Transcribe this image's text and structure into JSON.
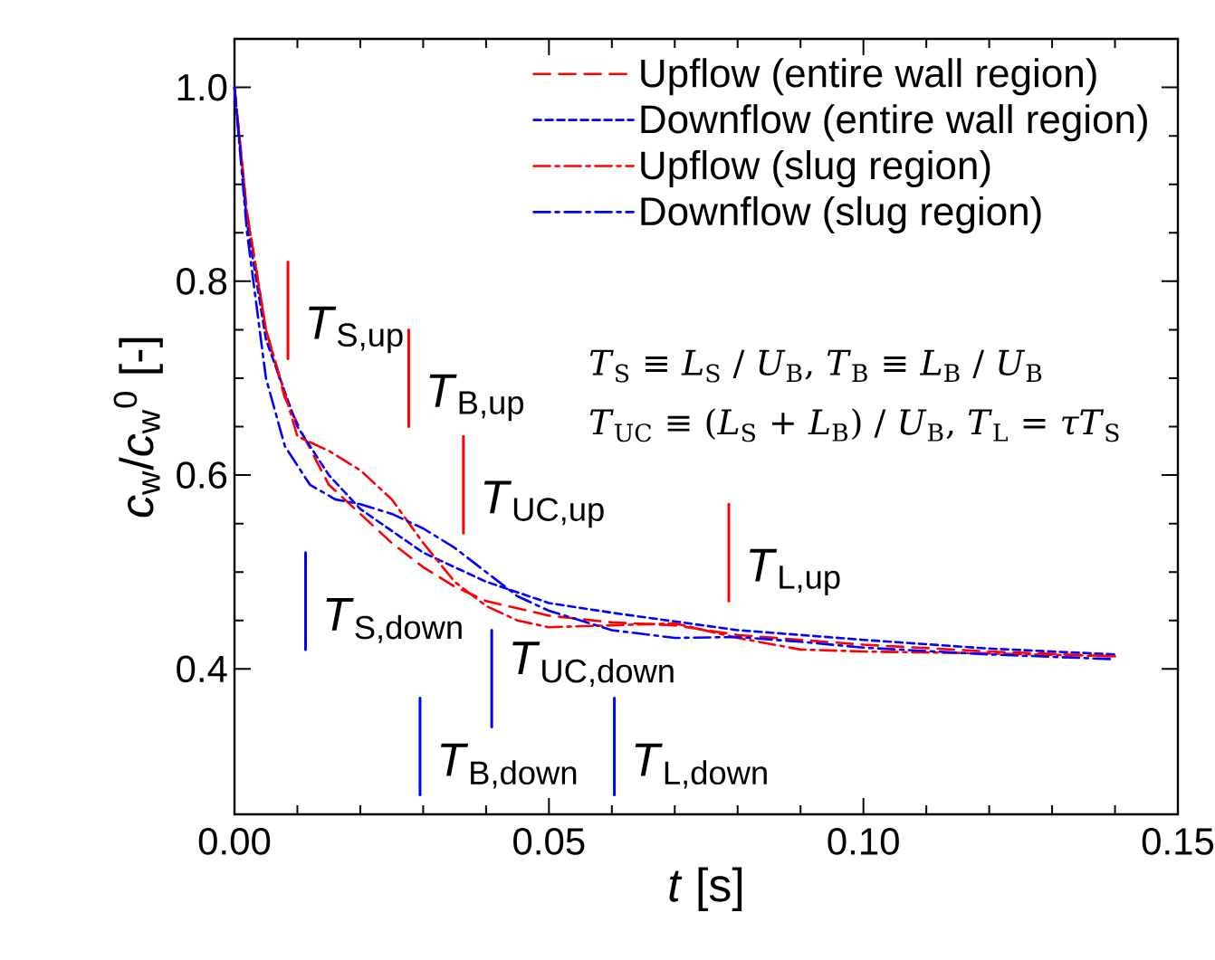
{
  "chart_data": {
    "type": "line",
    "xlabel": "*t* [s]",
    "ylabel": "*c*$_{w}$/*c*$_{w}$$^{0}$ [-]",
    "xlim": [
      0,
      0.15
    ],
    "ylim": [
      0.25,
      1.05
    ],
    "xticks": [
      {
        "value": 0,
        "label": "0.00"
      },
      {
        "value": 0.05,
        "label": "0.05"
      },
      {
        "value": 0.1,
        "label": "0.10"
      },
      {
        "value": 0.15,
        "label": "0.15"
      }
    ],
    "yticks": [
      0.4,
      0.6,
      0.8,
      {
        "value": 1.0,
        "label": "1.0"
      }
    ],
    "legend": "top right",
    "grid": false,
    "marker": "none",
    "series": [
      {
        "name": "Upflow (entire wall region)",
        "color": "#ff0000",
        "line_style": "dashed",
        "x": [
          0,
          0.002,
          0.005,
          0.008,
          0.011,
          0.015,
          0.02,
          0.025,
          0.03,
          0.035,
          0.04,
          0.05,
          0.06,
          0.07,
          0.08,
          0.1,
          0.12,
          0.14
        ],
        "values": [
          1.0,
          0.87,
          0.75,
          0.68,
          0.64,
          0.59,
          0.56,
          0.53,
          0.505,
          0.485,
          0.47,
          0.455,
          0.448,
          0.445,
          0.435,
          0.425,
          0.418,
          0.413
        ]
      },
      {
        "name": "Downflow (entire wall region)",
        "color": "#0000ff",
        "line_style": "dotted",
        "x": [
          0,
          0.002,
          0.005,
          0.01,
          0.015,
          0.02,
          0.03,
          0.04,
          0.05,
          0.06,
          0.08,
          0.1,
          0.12,
          0.14
        ],
        "values": [
          1.0,
          0.86,
          0.74,
          0.65,
          0.6,
          0.565,
          0.52,
          0.49,
          0.468,
          0.458,
          0.44,
          0.43,
          0.421,
          0.415
        ]
      },
      {
        "name": "Upflow (slug region)",
        "color": "#ff0000",
        "line_style": "dashdot",
        "x": [
          0,
          0.002,
          0.005,
          0.01,
          0.015,
          0.02,
          0.025,
          0.03,
          0.035,
          0.04,
          0.045,
          0.05,
          0.06,
          0.07,
          0.08,
          0.09,
          0.1,
          0.12,
          0.14
        ],
        "values": [
          1.0,
          0.87,
          0.75,
          0.64,
          0.625,
          0.605,
          0.575,
          0.53,
          0.49,
          0.465,
          0.45,
          0.443,
          0.445,
          0.447,
          0.432,
          0.42,
          0.418,
          0.416,
          0.413
        ]
      },
      {
        "name": "Downflow (slug region)",
        "color": "#0000ff",
        "line_style": "dashdot",
        "x": [
          0,
          0.002,
          0.005,
          0.008,
          0.012,
          0.016,
          0.02,
          0.025,
          0.03,
          0.035,
          0.04,
          0.045,
          0.05,
          0.06,
          0.07,
          0.08,
          0.09,
          0.1,
          0.12,
          0.14
        ],
        "values": [
          1.0,
          0.85,
          0.7,
          0.63,
          0.59,
          0.575,
          0.57,
          0.56,
          0.545,
          0.525,
          0.5,
          0.475,
          0.46,
          0.44,
          0.432,
          0.433,
          0.428,
          0.422,
          0.415,
          0.41
        ]
      },
      {
        "color": "#ff0000",
        "line_style": "solid",
        "x": [
          0.0085,
          0.0085
        ],
        "values": [
          0.72,
          0.82
        ]
      },
      {
        "color": "#ff0000",
        "line_style": "solid",
        "x": [
          0.0277,
          0.0277
        ],
        "values": [
          0.65,
          0.75
        ]
      },
      {
        "color": "#ff0000",
        "line_style": "solid",
        "x": [
          0.0364,
          0.0364
        ],
        "values": [
          0.54,
          0.64
        ]
      },
      {
        "color": "#ff0000",
        "line_style": "solid",
        "x": [
          0.0786,
          0.0786
        ],
        "values": [
          0.47,
          0.57
        ]
      },
      {
        "color": "#0000ff",
        "line_style": "solid",
        "x": [
          0.0113,
          0.0113
        ],
        "values": [
          0.42,
          0.52
        ]
      },
      {
        "color": "#0000ff",
        "line_style": "solid",
        "x": [
          0.0295,
          0.0295
        ],
        "values": [
          0.27,
          0.37
        ]
      },
      {
        "color": "#0000ff",
        "line_style": "solid",
        "x": [
          0.0409,
          0.0409
        ],
        "values": [
          0.34,
          0.44
        ]
      },
      {
        "color": "#0000ff",
        "line_style": "solid",
        "x": [
          0.0604,
          0.0604
        ],
        "values": [
          0.27,
          0.37
        ]
      }
    ],
    "annotations": [
      {
        "text": "*T*$_{S,up}$",
        "x": 0.0085,
        "y": 0.72
      },
      {
        "text": "*T*$_{B,up}$",
        "x": 0.0277,
        "y": 0.65
      },
      {
        "text": "*T*$_{UC,up}$",
        "x": 0.0364,
        "y": 0.54
      },
      {
        "text": "*T*$_{L,up}$",
        "x": 0.0786,
        "y": 0.47
      },
      {
        "text": "*T*$_{S,down}$",
        "x": 0.0113,
        "y": 0.42
      },
      {
        "text": "*T*$_{B,down}$",
        "x": 0.0295,
        "y": 0.27
      },
      {
        "text": "*T*$_{UC,down}$",
        "x": 0.0409,
        "y": 0.375
      },
      {
        "text": "*T*$_{L,down}$",
        "x": 0.0604,
        "y": 0.27
      },
      "*T*$_{S}$ ≡ *L*$_{S}$ / *U*$_{B}$,    *T*$_{B}$ ≡ *L*$_{B}$ / *U*$_{B}$",
      "*T*$_{UC}$ ≡ (*L*$_{S}$ + *L*$_{B}$) / *U*$_{B}$,    *T*$_{L}$ = *τT*$_{S}$"
    ]
  }
}
